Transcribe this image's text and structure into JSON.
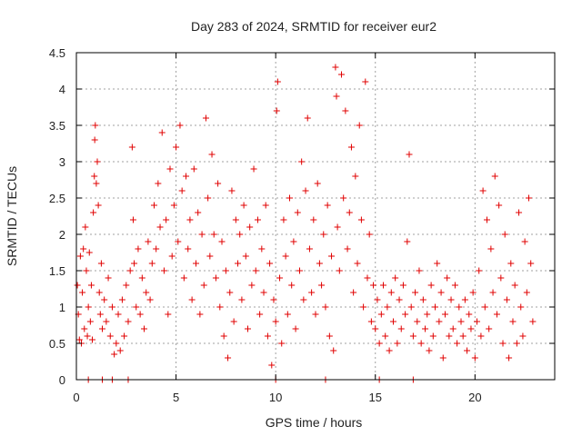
{
  "chart_data": {
    "type": "scatter",
    "title": "Day 283 of 2024, SRMTID for receiver eur2",
    "xlabel": "GPS time / hours",
    "ylabel": "SRMTID / TECUs",
    "xlim": [
      0,
      24
    ],
    "ylim": [
      0,
      4.5
    ],
    "x_ticks": [
      0,
      5,
      10,
      15,
      20
    ],
    "x_tick_labels": [
      "0",
      "5",
      "10",
      "15",
      "20"
    ],
    "y_ticks": [
      0,
      0.5,
      1,
      1.5,
      2,
      2.5,
      3,
      3.5,
      4,
      4.5
    ],
    "y_tick_labels": [
      "0",
      "0.5",
      "1",
      "1.5",
      "2",
      "2.5",
      "3",
      "3.5",
      "4",
      "4.5"
    ],
    "grid": true,
    "marker": "+",
    "marker_color": "#e00000",
    "series": [
      {
        "name": "SRMTID",
        "points": [
          [
            0.05,
            1.3
          ],
          [
            0.1,
            0.9
          ],
          [
            0.15,
            0.55
          ],
          [
            0.2,
            1.7
          ],
          [
            0.25,
            0.5
          ],
          [
            0.3,
            1.2
          ],
          [
            0.35,
            1.8
          ],
          [
            0.4,
            0.7
          ],
          [
            0.45,
            2.1
          ],
          [
            0.5,
            1.5
          ],
          [
            0.55,
            0.6
          ],
          [
            0.6,
            1.0
          ],
          [
            0.65,
            1.75
          ],
          [
            0.7,
            0.8
          ],
          [
            0.75,
            1.3
          ],
          [
            0.8,
            0.55
          ],
          [
            0.85,
            2.3
          ],
          [
            0.9,
            2.8
          ],
          [
            0.92,
            3.3
          ],
          [
            0.95,
            3.5
          ],
          [
            1.0,
            2.7
          ],
          [
            1.05,
            3.0
          ],
          [
            1.1,
            2.4
          ],
          [
            1.15,
            1.2
          ],
          [
            1.2,
            0.9
          ],
          [
            1.25,
            1.6
          ],
          [
            1.3,
            0.7
          ],
          [
            1.4,
            1.1
          ],
          [
            1.5,
            0.8
          ],
          [
            1.6,
            1.4
          ],
          [
            1.7,
            0.6
          ],
          [
            1.8,
            1.0
          ],
          [
            1.9,
            0.35
          ],
          [
            2.0,
            0.5
          ],
          [
            2.1,
            0.9
          ],
          [
            2.2,
            0.4
          ],
          [
            2.3,
            1.1
          ],
          [
            2.4,
            0.6
          ],
          [
            2.5,
            1.3
          ],
          [
            2.6,
            0.8
          ],
          [
            2.7,
            1.5
          ],
          [
            2.8,
            3.2
          ],
          [
            2.85,
            2.2
          ],
          [
            2.9,
            1.6
          ],
          [
            3.0,
            1.0
          ],
          [
            3.1,
            1.8
          ],
          [
            3.2,
            0.9
          ],
          [
            3.3,
            1.4
          ],
          [
            3.4,
            0.7
          ],
          [
            3.5,
            1.2
          ],
          [
            3.6,
            1.9
          ],
          [
            3.7,
            1.1
          ],
          [
            3.8,
            1.6
          ],
          [
            3.9,
            2.4
          ],
          [
            4.0,
            1.8
          ],
          [
            4.1,
            2.7
          ],
          [
            4.2,
            2.1
          ],
          [
            4.3,
            3.4
          ],
          [
            4.4,
            1.5
          ],
          [
            4.5,
            2.2
          ],
          [
            4.6,
            0.9
          ],
          [
            4.7,
            2.9
          ],
          [
            4.8,
            1.7
          ],
          [
            4.9,
            2.4
          ],
          [
            5.0,
            3.2
          ],
          [
            5.1,
            1.9
          ],
          [
            5.2,
            3.5
          ],
          [
            5.3,
            2.6
          ],
          [
            5.4,
            1.4
          ],
          [
            5.5,
            2.8
          ],
          [
            5.6,
            1.8
          ],
          [
            5.7,
            2.2
          ],
          [
            5.8,
            1.1
          ],
          [
            5.9,
            2.9
          ],
          [
            6.0,
            1.6
          ],
          [
            6.1,
            2.3
          ],
          [
            6.2,
            0.9
          ],
          [
            6.3,
            2.0
          ],
          [
            6.4,
            1.3
          ],
          [
            6.5,
            3.6
          ],
          [
            6.6,
            2.5
          ],
          [
            6.7,
            1.7
          ],
          [
            6.8,
            3.1
          ],
          [
            6.9,
            2.0
          ],
          [
            7.0,
            1.4
          ],
          [
            7.1,
            2.7
          ],
          [
            7.2,
            1.0
          ],
          [
            7.3,
            1.9
          ],
          [
            7.4,
            0.6
          ],
          [
            7.5,
            1.5
          ],
          [
            7.6,
            0.3
          ],
          [
            7.7,
            1.2
          ],
          [
            7.8,
            2.6
          ],
          [
            7.9,
            0.8
          ],
          [
            8.0,
            2.2
          ],
          [
            8.1,
            1.6
          ],
          [
            8.2,
            2.0
          ],
          [
            8.3,
            1.1
          ],
          [
            8.4,
            2.4
          ],
          [
            8.5,
            1.7
          ],
          [
            8.6,
            0.7
          ],
          [
            8.7,
            2.1
          ],
          [
            8.8,
            1.3
          ],
          [
            8.9,
            2.9
          ],
          [
            9.0,
            1.5
          ],
          [
            9.1,
            2.2
          ],
          [
            9.2,
            0.9
          ],
          [
            9.3,
            1.8
          ],
          [
            9.4,
            1.2
          ],
          [
            9.5,
            2.4
          ],
          [
            9.6,
            0.6
          ],
          [
            9.7,
            1.6
          ],
          [
            9.8,
            0.2
          ],
          [
            9.9,
            1.1
          ],
          [
            10.0,
            0.8
          ],
          [
            10.05,
            3.7
          ],
          [
            10.1,
            4.1
          ],
          [
            10.2,
            1.4
          ],
          [
            10.3,
            0.5
          ],
          [
            10.4,
            2.2
          ],
          [
            10.5,
            1.7
          ],
          [
            10.6,
            0.9
          ],
          [
            10.7,
            2.5
          ],
          [
            10.8,
            1.3
          ],
          [
            10.9,
            1.9
          ],
          [
            11.0,
            0.7
          ],
          [
            11.1,
            2.3
          ],
          [
            11.2,
            1.5
          ],
          [
            11.3,
            3.0
          ],
          [
            11.4,
            1.1
          ],
          [
            11.5,
            2.6
          ],
          [
            11.6,
            3.6
          ],
          [
            11.7,
            1.8
          ],
          [
            11.8,
            1.2
          ],
          [
            11.9,
            2.2
          ],
          [
            12.0,
            0.9
          ],
          [
            12.1,
            2.7
          ],
          [
            12.2,
            1.6
          ],
          [
            12.3,
            1.3
          ],
          [
            12.4,
            2.0
          ],
          [
            12.5,
            1.0
          ],
          [
            12.6,
            2.4
          ],
          [
            12.7,
            0.6
          ],
          [
            12.8,
            1.7
          ],
          [
            12.9,
            0.4
          ],
          [
            13.0,
            4.3
          ],
          [
            13.05,
            3.9
          ],
          [
            13.1,
            2.1
          ],
          [
            13.2,
            1.5
          ],
          [
            13.3,
            4.2
          ],
          [
            13.4,
            2.5
          ],
          [
            13.5,
            3.7
          ],
          [
            13.6,
            1.8
          ],
          [
            13.7,
            2.3
          ],
          [
            13.8,
            3.2
          ],
          [
            13.9,
            1.2
          ],
          [
            14.0,
            2.8
          ],
          [
            14.1,
            1.6
          ],
          [
            14.2,
            3.5
          ],
          [
            14.3,
            2.2
          ],
          [
            14.4,
            1.0
          ],
          [
            14.5,
            4.1
          ],
          [
            14.6,
            1.4
          ],
          [
            14.7,
            2.0
          ],
          [
            14.8,
            0.8
          ],
          [
            14.9,
            1.3
          ],
          [
            15.0,
            0.7
          ],
          [
            15.1,
            1.1
          ],
          [
            15.2,
            0.5
          ],
          [
            15.3,
            0.9
          ],
          [
            15.4,
            1.3
          ],
          [
            15.5,
            0.6
          ],
          [
            15.6,
            1.0
          ],
          [
            15.7,
            0.4
          ],
          [
            15.8,
            1.2
          ],
          [
            15.9,
            0.8
          ],
          [
            16.0,
            1.4
          ],
          [
            16.1,
            0.5
          ],
          [
            16.2,
            1.1
          ],
          [
            16.3,
            0.7
          ],
          [
            16.4,
            1.3
          ],
          [
            16.5,
            0.9
          ],
          [
            16.6,
            1.9
          ],
          [
            16.7,
            3.1
          ],
          [
            16.8,
            1.0
          ],
          [
            16.9,
            0.6
          ],
          [
            17.0,
            1.2
          ],
          [
            17.1,
            0.8
          ],
          [
            17.2,
            1.5
          ],
          [
            17.3,
            0.5
          ],
          [
            17.4,
            1.1
          ],
          [
            17.5,
            0.7
          ],
          [
            17.6,
            0.9
          ],
          [
            17.7,
            0.4
          ],
          [
            17.8,
            1.3
          ],
          [
            17.9,
            0.6
          ],
          [
            18.0,
            1.0
          ],
          [
            18.1,
            1.6
          ],
          [
            18.2,
            0.8
          ],
          [
            18.3,
            1.2
          ],
          [
            18.4,
            0.3
          ],
          [
            18.5,
            0.9
          ],
          [
            18.6,
            1.4
          ],
          [
            18.7,
            0.6
          ],
          [
            18.8,
            1.1
          ],
          [
            18.9,
            0.7
          ],
          [
            19.0,
            1.3
          ],
          [
            19.1,
            0.5
          ],
          [
            19.2,
            1.0
          ],
          [
            19.3,
            0.8
          ],
          [
            19.4,
            0.6
          ],
          [
            19.5,
            1.1
          ],
          [
            19.6,
            0.4
          ],
          [
            19.7,
            0.9
          ],
          [
            19.8,
            0.7
          ],
          [
            19.9,
            1.2
          ],
          [
            20.0,
            0.3
          ],
          [
            20.1,
            0.8
          ],
          [
            20.2,
            1.5
          ],
          [
            20.3,
            0.6
          ],
          [
            20.4,
            2.6
          ],
          [
            20.5,
            1.0
          ],
          [
            20.6,
            2.2
          ],
          [
            20.7,
            0.7
          ],
          [
            20.8,
            1.8
          ],
          [
            20.9,
            1.2
          ],
          [
            21.0,
            2.8
          ],
          [
            21.1,
            0.9
          ],
          [
            21.2,
            2.4
          ],
          [
            21.3,
            1.4
          ],
          [
            21.4,
            0.5
          ],
          [
            21.5,
            2.0
          ],
          [
            21.6,
            1.1
          ],
          [
            21.7,
            0.3
          ],
          [
            21.8,
            1.6
          ],
          [
            21.9,
            0.8
          ],
          [
            22.0,
            1.3
          ],
          [
            22.1,
            0.5
          ],
          [
            22.2,
            2.3
          ],
          [
            22.3,
            1.0
          ],
          [
            22.4,
            0.6
          ],
          [
            22.5,
            1.9
          ],
          [
            22.6,
            1.2
          ],
          [
            22.7,
            2.5
          ],
          [
            22.8,
            1.6
          ],
          [
            22.9,
            0.8
          ],
          [
            0.6,
            0.0
          ],
          [
            1.3,
            0.0
          ],
          [
            1.8,
            0.0
          ],
          [
            2.6,
            0.0
          ],
          [
            10.0,
            0.0
          ],
          [
            12.5,
            0.0
          ],
          [
            15.2,
            0.0
          ],
          [
            16.9,
            0.0
          ]
        ]
      }
    ]
  }
}
